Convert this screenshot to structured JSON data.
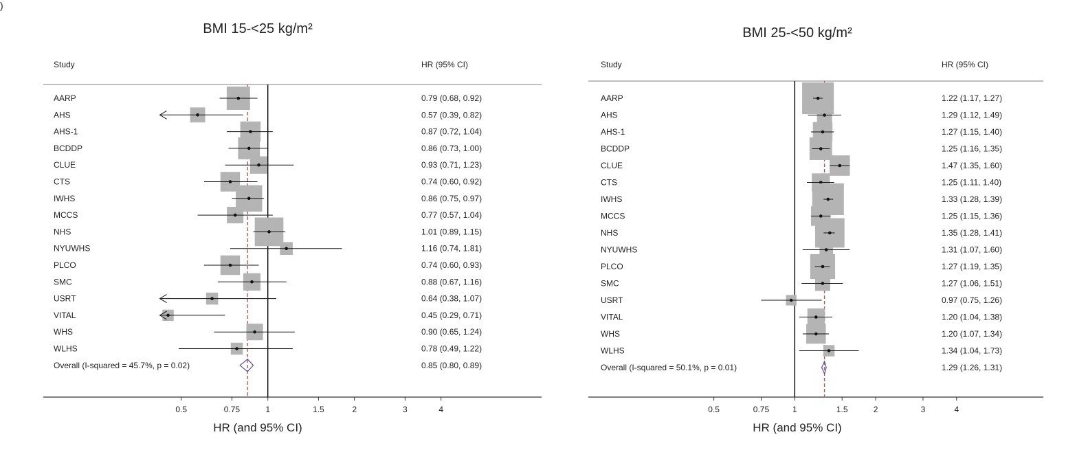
{
  "fragment": ")",
  "chart_data": [
    {
      "type": "forest",
      "title": "BMI 15-<25 kg/m²",
      "study_header": "Study",
      "hr_header": "HR (95% CI)",
      "xlabel": "HR (and 95% CI)",
      "xscale": "log",
      "xlim": [
        0.42,
        4.4
      ],
      "xticks": [
        0.5,
        0.75,
        1,
        1.5,
        2,
        3,
        4
      ],
      "xtick_labels": [
        "0.5",
        "0.75",
        "1",
        "1.5",
        "2",
        "3",
        "4"
      ],
      "reference_line": 1,
      "overall_line": 0.85,
      "studies": [
        {
          "name": "AARP",
          "hr": 0.79,
          "lo": 0.68,
          "hi": 0.92,
          "label": "0.79 (0.68, 0.92)",
          "weight": 1.0
        },
        {
          "name": "AHS",
          "hr": 0.57,
          "lo": 0.39,
          "hi": 0.82,
          "label": "0.57 (0.39, 0.82)",
          "weight": 0.45
        },
        {
          "name": "AHS-1",
          "hr": 0.87,
          "lo": 0.72,
          "hi": 1.04,
          "label": "0.87 (0.72, 1.04)",
          "weight": 0.8
        },
        {
          "name": "BCDDP",
          "hr": 0.86,
          "lo": 0.73,
          "hi": 1.0,
          "label": "0.86 (0.73, 1.00)",
          "weight": 0.9
        },
        {
          "name": "CLUE",
          "hr": 0.93,
          "lo": 0.71,
          "hi": 1.23,
          "label": "0.93 (0.71, 1.23)",
          "weight": 0.6
        },
        {
          "name": "CTS",
          "hr": 0.74,
          "lo": 0.6,
          "hi": 0.92,
          "label": "0.74 (0.60, 0.92)",
          "weight": 0.75
        },
        {
          "name": "IWHS",
          "hr": 0.86,
          "lo": 0.75,
          "hi": 0.97,
          "label": "0.86 (0.75, 0.97)",
          "weight": 1.2
        },
        {
          "name": "MCCS",
          "hr": 0.77,
          "lo": 0.57,
          "hi": 1.04,
          "label": "0.77 (0.57, 1.04)",
          "weight": 0.55
        },
        {
          "name": "NHS",
          "hr": 1.01,
          "lo": 0.89,
          "hi": 1.15,
          "label": "1.01 (0.89, 1.15)",
          "weight": 1.35
        },
        {
          "name": "NYUWHS",
          "hr": 1.16,
          "lo": 0.74,
          "hi": 1.81,
          "label": "1.16 (0.74, 1.81)",
          "weight": 0.3
        },
        {
          "name": "PLCO",
          "hr": 0.74,
          "lo": 0.6,
          "hi": 0.93,
          "label": "0.74 (0.60, 0.93)",
          "weight": 0.75
        },
        {
          "name": "SMC",
          "hr": 0.88,
          "lo": 0.67,
          "hi": 1.16,
          "label": "0.88 (0.67, 1.16)",
          "weight": 0.6
        },
        {
          "name": "USRT",
          "hr": 0.64,
          "lo": 0.38,
          "hi": 1.07,
          "label": "0.64 (0.38, 1.07)",
          "weight": 0.25
        },
        {
          "name": "VITAL",
          "hr": 0.45,
          "lo": 0.29,
          "hi": 0.71,
          "label": "0.45 (0.29, 0.71)",
          "weight": 0.2
        },
        {
          "name": "WHS",
          "hr": 0.9,
          "lo": 0.65,
          "hi": 1.24,
          "label": "0.90 (0.65, 1.24)",
          "weight": 0.55
        },
        {
          "name": "WLHS",
          "hr": 0.78,
          "lo": 0.49,
          "hi": 1.22,
          "label": "0.78 (0.49, 1.22)",
          "weight": 0.25
        }
      ],
      "overall": {
        "name": "Overall  (I-squared = 45.7%, p = 0.02)",
        "hr": 0.85,
        "lo": 0.8,
        "hi": 0.89,
        "label": "0.85 (0.80, 0.89)"
      },
      "colors": {
        "box": "#b4b4b4",
        "diamond": "#5b4d9a",
        "overall_line": "#b5585e",
        "ink": "#111111"
      }
    },
    {
      "type": "forest",
      "title": "BMI 25-<50 kg/m²",
      "study_header": "Study",
      "hr_header": "HR (95% CI)",
      "xlabel": "HR (and 95% CI)",
      "xscale": "log",
      "xlim": [
        0.42,
        4.4
      ],
      "xticks": [
        0.5,
        0.75,
        1,
        1.5,
        2,
        3,
        4
      ],
      "xtick_labels": [
        "0.5",
        "0.75",
        "1",
        "1.5",
        "2",
        "3",
        "4"
      ],
      "reference_line": 1,
      "overall_line": 1.29,
      "studies": [
        {
          "name": "AARP",
          "hr": 1.22,
          "lo": 1.17,
          "hi": 1.27,
          "label": "1.22 (1.17, 1.27)",
          "weight": 1.55
        },
        {
          "name": "AHS",
          "hr": 1.29,
          "lo": 1.12,
          "hi": 1.49,
          "label": "1.29 (1.12, 1.49)",
          "weight": 0.45
        },
        {
          "name": "AHS-1",
          "hr": 1.27,
          "lo": 1.15,
          "hi": 1.4,
          "label": "1.27 (1.15, 1.40)",
          "weight": 0.75
        },
        {
          "name": "BCDDP",
          "hr": 1.25,
          "lo": 1.16,
          "hi": 1.35,
          "label": "1.25 (1.16, 1.35)",
          "weight": 0.95
        },
        {
          "name": "CLUE",
          "hr": 1.47,
          "lo": 1.35,
          "hi": 1.6,
          "label": "1.47 (1.35, 1.60)",
          "weight": 0.8
        },
        {
          "name": "CTS",
          "hr": 1.25,
          "lo": 1.11,
          "hi": 1.4,
          "label": "1.25 (1.11, 1.40)",
          "weight": 0.65
        },
        {
          "name": "IWHS",
          "hr": 1.33,
          "lo": 1.28,
          "hi": 1.39,
          "label": "1.33 (1.28, 1.39)",
          "weight": 1.55
        },
        {
          "name": "MCCS",
          "hr": 1.25,
          "lo": 1.15,
          "hi": 1.36,
          "label": "1.25 (1.15, 1.36)",
          "weight": 0.75
        },
        {
          "name": "NHS",
          "hr": 1.35,
          "lo": 1.28,
          "hi": 1.41,
          "label": "1.35 (1.28, 1.41)",
          "weight": 1.4
        },
        {
          "name": "NYUWHS",
          "hr": 1.31,
          "lo": 1.07,
          "hi": 1.6,
          "label": "1.31 (1.07, 1.60)",
          "weight": 0.35
        },
        {
          "name": "PLCO",
          "hr": 1.27,
          "lo": 1.19,
          "hi": 1.35,
          "label": "1.27 (1.19, 1.35)",
          "weight": 1.1
        },
        {
          "name": "SMC",
          "hr": 1.27,
          "lo": 1.06,
          "hi": 1.51,
          "label": "1.27 (1.06, 1.51)",
          "weight": 0.45
        },
        {
          "name": "USRT",
          "hr": 0.97,
          "lo": 0.75,
          "hi": 1.26,
          "label": "0.97 (0.75, 1.26)",
          "weight": 0.15
        },
        {
          "name": "VITAL",
          "hr": 1.2,
          "lo": 1.04,
          "hi": 1.38,
          "label": "1.20 (1.04, 1.38)",
          "weight": 0.6
        },
        {
          "name": "WHS",
          "hr": 1.2,
          "lo": 1.07,
          "hi": 1.34,
          "label": "1.20 (1.07, 1.34)",
          "weight": 0.75
        },
        {
          "name": "WLHS",
          "hr": 1.34,
          "lo": 1.04,
          "hi": 1.73,
          "label": "1.34 (1.04, 1.73)",
          "weight": 0.2
        }
      ],
      "overall": {
        "name": "Overall (I-squared = 50.1%, p = 0.01)",
        "hr": 1.29,
        "lo": 1.26,
        "hi": 1.31,
        "label": "1.29 (1.26, 1.31)"
      },
      "colors": {
        "box": "#b4b4b4",
        "diamond": "#5b4d9a",
        "overall_line": "#b5585e",
        "ink": "#111111"
      }
    }
  ]
}
